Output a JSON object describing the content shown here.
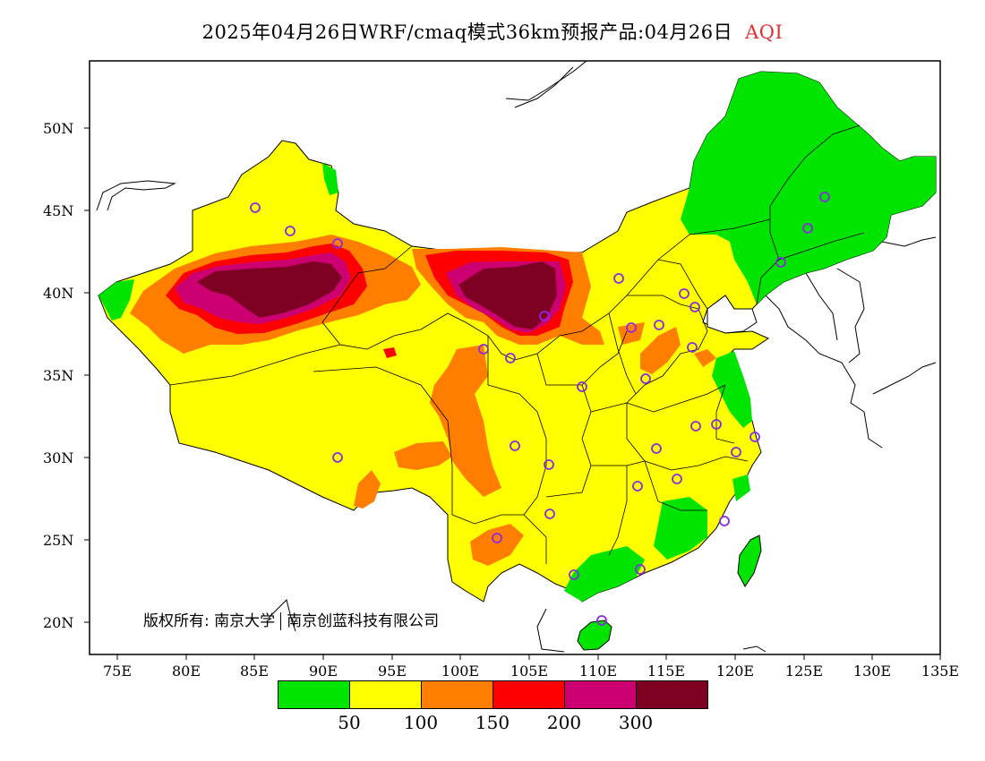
{
  "title": {
    "main": "2025年04月26日WRF/cmaq模式36km预报产品:04月26日",
    "variable": "AQI"
  },
  "copyright": {
    "owner_a": "版权所有: 南京大学",
    "owner_b": "南京创蓝科技有限公司"
  },
  "map": {
    "lat_labels": [
      "50N",
      "45N",
      "40N",
      "35N",
      "30N",
      "25N",
      "20N"
    ],
    "lon_labels": [
      "75E",
      "80E",
      "85E",
      "90E",
      "95E",
      "100E",
      "105E",
      "110E",
      "115E",
      "120E",
      "125E",
      "130E",
      "135E"
    ],
    "lon_range": [
      73,
      135
    ],
    "lat_range": [
      18,
      54
    ]
  },
  "legend": {
    "colors": [
      "#00e400",
      "#ffff00",
      "#ff7e00",
      "#ff0000",
      "#cc0070",
      "#7e0023"
    ],
    "labels": [
      "50",
      "100",
      "150",
      "200",
      "300"
    ]
  },
  "colors": {
    "good": "#00e400",
    "moderate": "#ffff00",
    "unhealthy_sensitive": "#ff7e00",
    "unhealthy": "#ff0000",
    "very_unhealthy": "#cc0070",
    "hazardous": "#7e0023",
    "station_marker": "#8a2be2"
  }
}
